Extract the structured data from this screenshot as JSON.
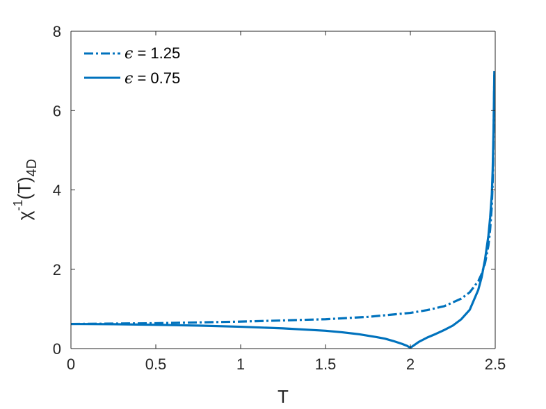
{
  "chart_data": {
    "type": "line",
    "xlabel": "T",
    "ylabel": {
      "base": "χ",
      "sup": "-1",
      "paren": "(T)",
      "sub": "4D"
    },
    "xlim": [
      0,
      2.5
    ],
    "ylim": [
      0,
      8
    ],
    "xticks": [
      0,
      0.5,
      1,
      1.5,
      2,
      2.5
    ],
    "xtick_labels": [
      "0",
      "0.5",
      "1",
      "1.5",
      "2",
      "2.5"
    ],
    "yticks": [
      0,
      2,
      4,
      6,
      8
    ],
    "ytick_labels": [
      "0",
      "2",
      "4",
      "6",
      "8"
    ],
    "grid": false,
    "legend_position": "top-left",
    "color": "#0072BD",
    "series": [
      {
        "name": "ϵ = 1.25",
        "symbol": "ϵ",
        "rest": " = 1.25",
        "style": "dash-dot",
        "x": [
          0,
          0.25,
          0.5,
          0.75,
          1.0,
          1.25,
          1.5,
          1.75,
          1.9,
          2.0,
          2.1,
          2.2,
          2.3,
          2.35,
          2.4,
          2.42,
          2.44,
          2.46,
          2.47,
          2.48,
          2.485,
          2.49,
          2.495
        ],
        "y": [
          0.62,
          0.63,
          0.64,
          0.66,
          0.68,
          0.71,
          0.74,
          0.8,
          0.86,
          0.9,
          0.97,
          1.07,
          1.26,
          1.42,
          1.7,
          1.88,
          2.15,
          2.6,
          3.0,
          3.6,
          4.2,
          5.3,
          6.9
        ]
      },
      {
        "name": "ϵ = 0.75",
        "symbol": "ϵ",
        "rest": " = 0.75",
        "style": "solid",
        "x": [
          0,
          0.25,
          0.5,
          0.75,
          1.0,
          1.25,
          1.5,
          1.6,
          1.7,
          1.8,
          1.85,
          1.9,
          1.95,
          1.98,
          2.0,
          2.02,
          2.05,
          2.1,
          2.15,
          2.2,
          2.25,
          2.3,
          2.35,
          2.4,
          2.42,
          2.44,
          2.46,
          2.47,
          2.48,
          2.485,
          2.49,
          2.495
        ],
        "y": [
          0.62,
          0.615,
          0.6,
          0.58,
          0.55,
          0.51,
          0.45,
          0.41,
          0.36,
          0.29,
          0.25,
          0.19,
          0.12,
          0.07,
          0.02,
          0.08,
          0.17,
          0.28,
          0.37,
          0.47,
          0.58,
          0.74,
          0.98,
          1.48,
          1.8,
          2.25,
          2.85,
          3.3,
          3.9,
          4.5,
          5.5,
          7.0
        ]
      }
    ]
  }
}
